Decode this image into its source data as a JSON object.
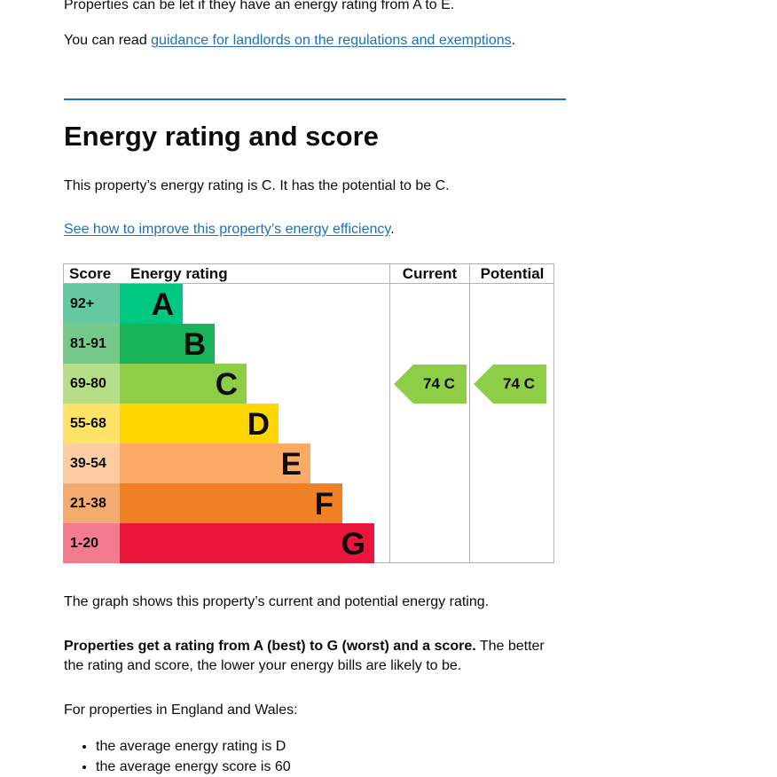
{
  "intro": {
    "lettable_text": "Properties can be let if they have an energy rating from A to E.",
    "guidance_prefix": "You can read ",
    "guidance_link": "guidance for landlords on the regulations and exemptions",
    "guidance_suffix": "."
  },
  "section": {
    "title": "Energy rating and score",
    "rating_text": "This property’s energy rating is C. It has the potential to be C.",
    "improve_link": "See how to improve this property’s energy efficiency",
    "improve_suffix": "."
  },
  "epc_graph": {
    "headers": {
      "score": "Score",
      "energy_rating": "Energy rating",
      "current": "Current",
      "potential": "Potential"
    },
    "bands": [
      {
        "score": "92+",
        "letter": "A",
        "color": "#00c781",
        "score_bg": "#64c9a0"
      },
      {
        "score": "81-91",
        "letter": "B",
        "color": "#19b459",
        "score_bg": "#75c98a"
      },
      {
        "score": "69-80",
        "letter": "C",
        "color": "#8dce46",
        "score_bg": "#b5de86"
      },
      {
        "score": "55-68",
        "letter": "D",
        "color": "#ffd500",
        "score_bg": "#ffe366"
      },
      {
        "score": "39-54",
        "letter": "E",
        "color": "#fcaa65",
        "score_bg": "#fdcca3"
      },
      {
        "score": "21-38",
        "letter": "F",
        "color": "#ef8023",
        "score_bg": "#f5ab6e"
      },
      {
        "score": "1-20",
        "letter": "G",
        "color": "#e9153b",
        "score_bg": "#f47b8f"
      }
    ],
    "current": {
      "label": "74  C",
      "score": 74,
      "band": "C",
      "color": "#8dce46"
    },
    "potential": {
      "label": "74  C",
      "score": 74,
      "band": "C",
      "color": "#8dce46"
    }
  },
  "explain": {
    "graph_text": "The graph shows this property’s current and potential energy rating.",
    "bold_text": "Properties get a rating from A (best) to G (worst) and a score.",
    "rest_text": " The better the rating and score, the lower your energy bills are likely to be.",
    "region_text": "For properties in England and Wales:",
    "averages": [
      "the average energy rating is D",
      "the average energy score is 60"
    ]
  }
}
